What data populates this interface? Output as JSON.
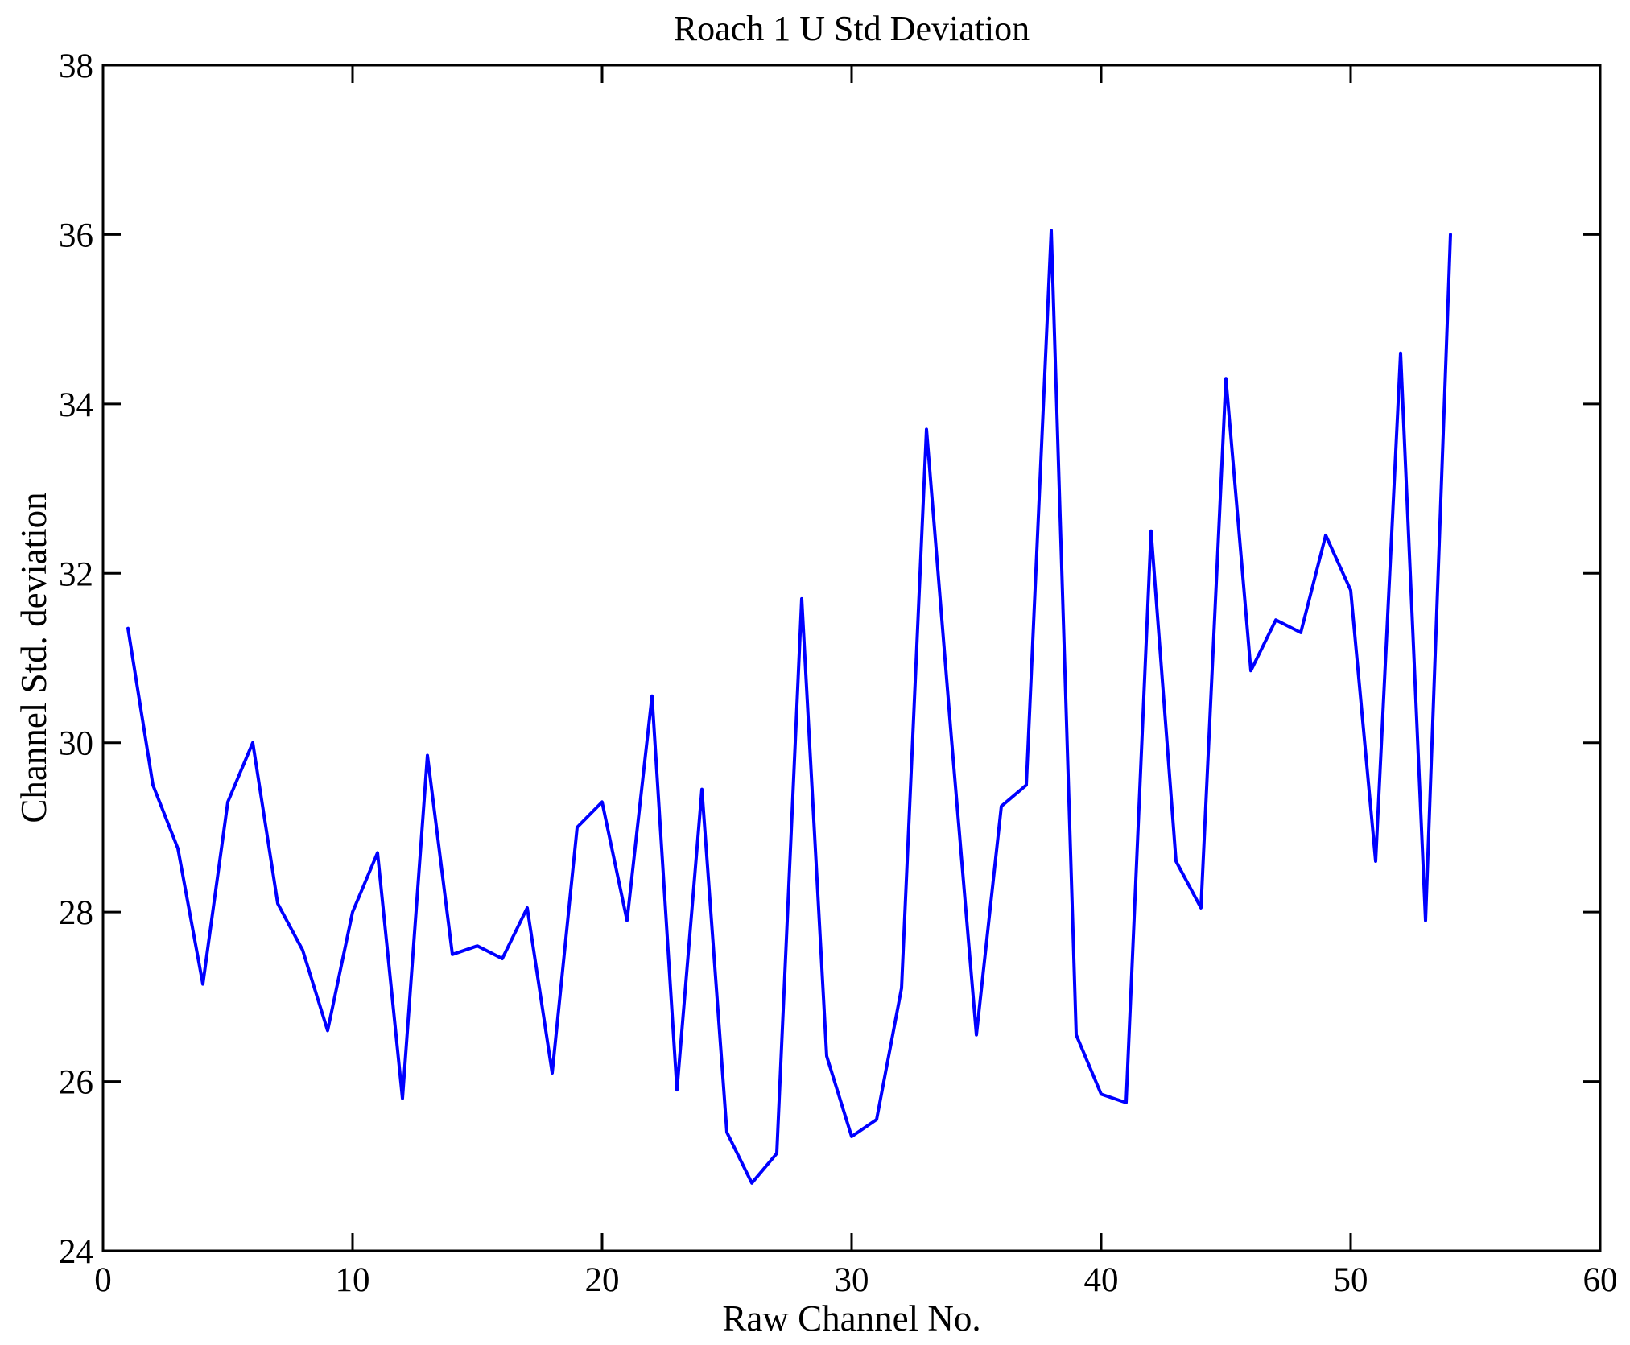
{
  "figure": {
    "background": "#ffffff"
  },
  "chart_data": {
    "type": "line",
    "title": "Roach 1 U Std Deviation",
    "xlabel": "Raw Channel No.",
    "ylabel": "Channel Std. deviation",
    "x": [
      1,
      2,
      3,
      4,
      5,
      6,
      7,
      8,
      9,
      10,
      11,
      12,
      13,
      14,
      15,
      16,
      17,
      18,
      19,
      20,
      21,
      22,
      23,
      24,
      25,
      26,
      27,
      28,
      29,
      30,
      31,
      32,
      33,
      34,
      35,
      36,
      37,
      38,
      39,
      40,
      41,
      42,
      43,
      44,
      45,
      46,
      47,
      48,
      49,
      50,
      51,
      52,
      53,
      54
    ],
    "values": [
      31.35,
      29.5,
      28.75,
      27.15,
      29.3,
      30.0,
      28.1,
      27.55,
      26.6,
      28.0,
      28.7,
      25.8,
      29.85,
      27.5,
      27.6,
      27.45,
      28.05,
      26.1,
      29.0,
      29.3,
      27.9,
      30.55,
      25.9,
      29.45,
      25.4,
      24.8,
      25.15,
      31.7,
      26.3,
      25.35,
      25.55,
      27.1,
      33.7,
      30.05,
      26.55,
      29.25,
      29.5,
      36.05,
      26.55,
      25.85,
      25.75,
      32.5,
      28.6,
      28.05,
      34.3,
      30.85,
      31.45,
      31.3,
      32.45,
      31.8,
      28.6,
      34.6,
      27.9,
      36.0
    ],
    "xlim": [
      0,
      60
    ],
    "ylim": [
      24,
      38
    ],
    "xticks": [
      0,
      10,
      20,
      30,
      40,
      50,
      60
    ],
    "yticks": [
      24,
      26,
      28,
      30,
      32,
      34,
      36,
      38
    ],
    "line_color": "#0000ff",
    "axis_color": "#000000",
    "grid": false,
    "legend": null
  }
}
